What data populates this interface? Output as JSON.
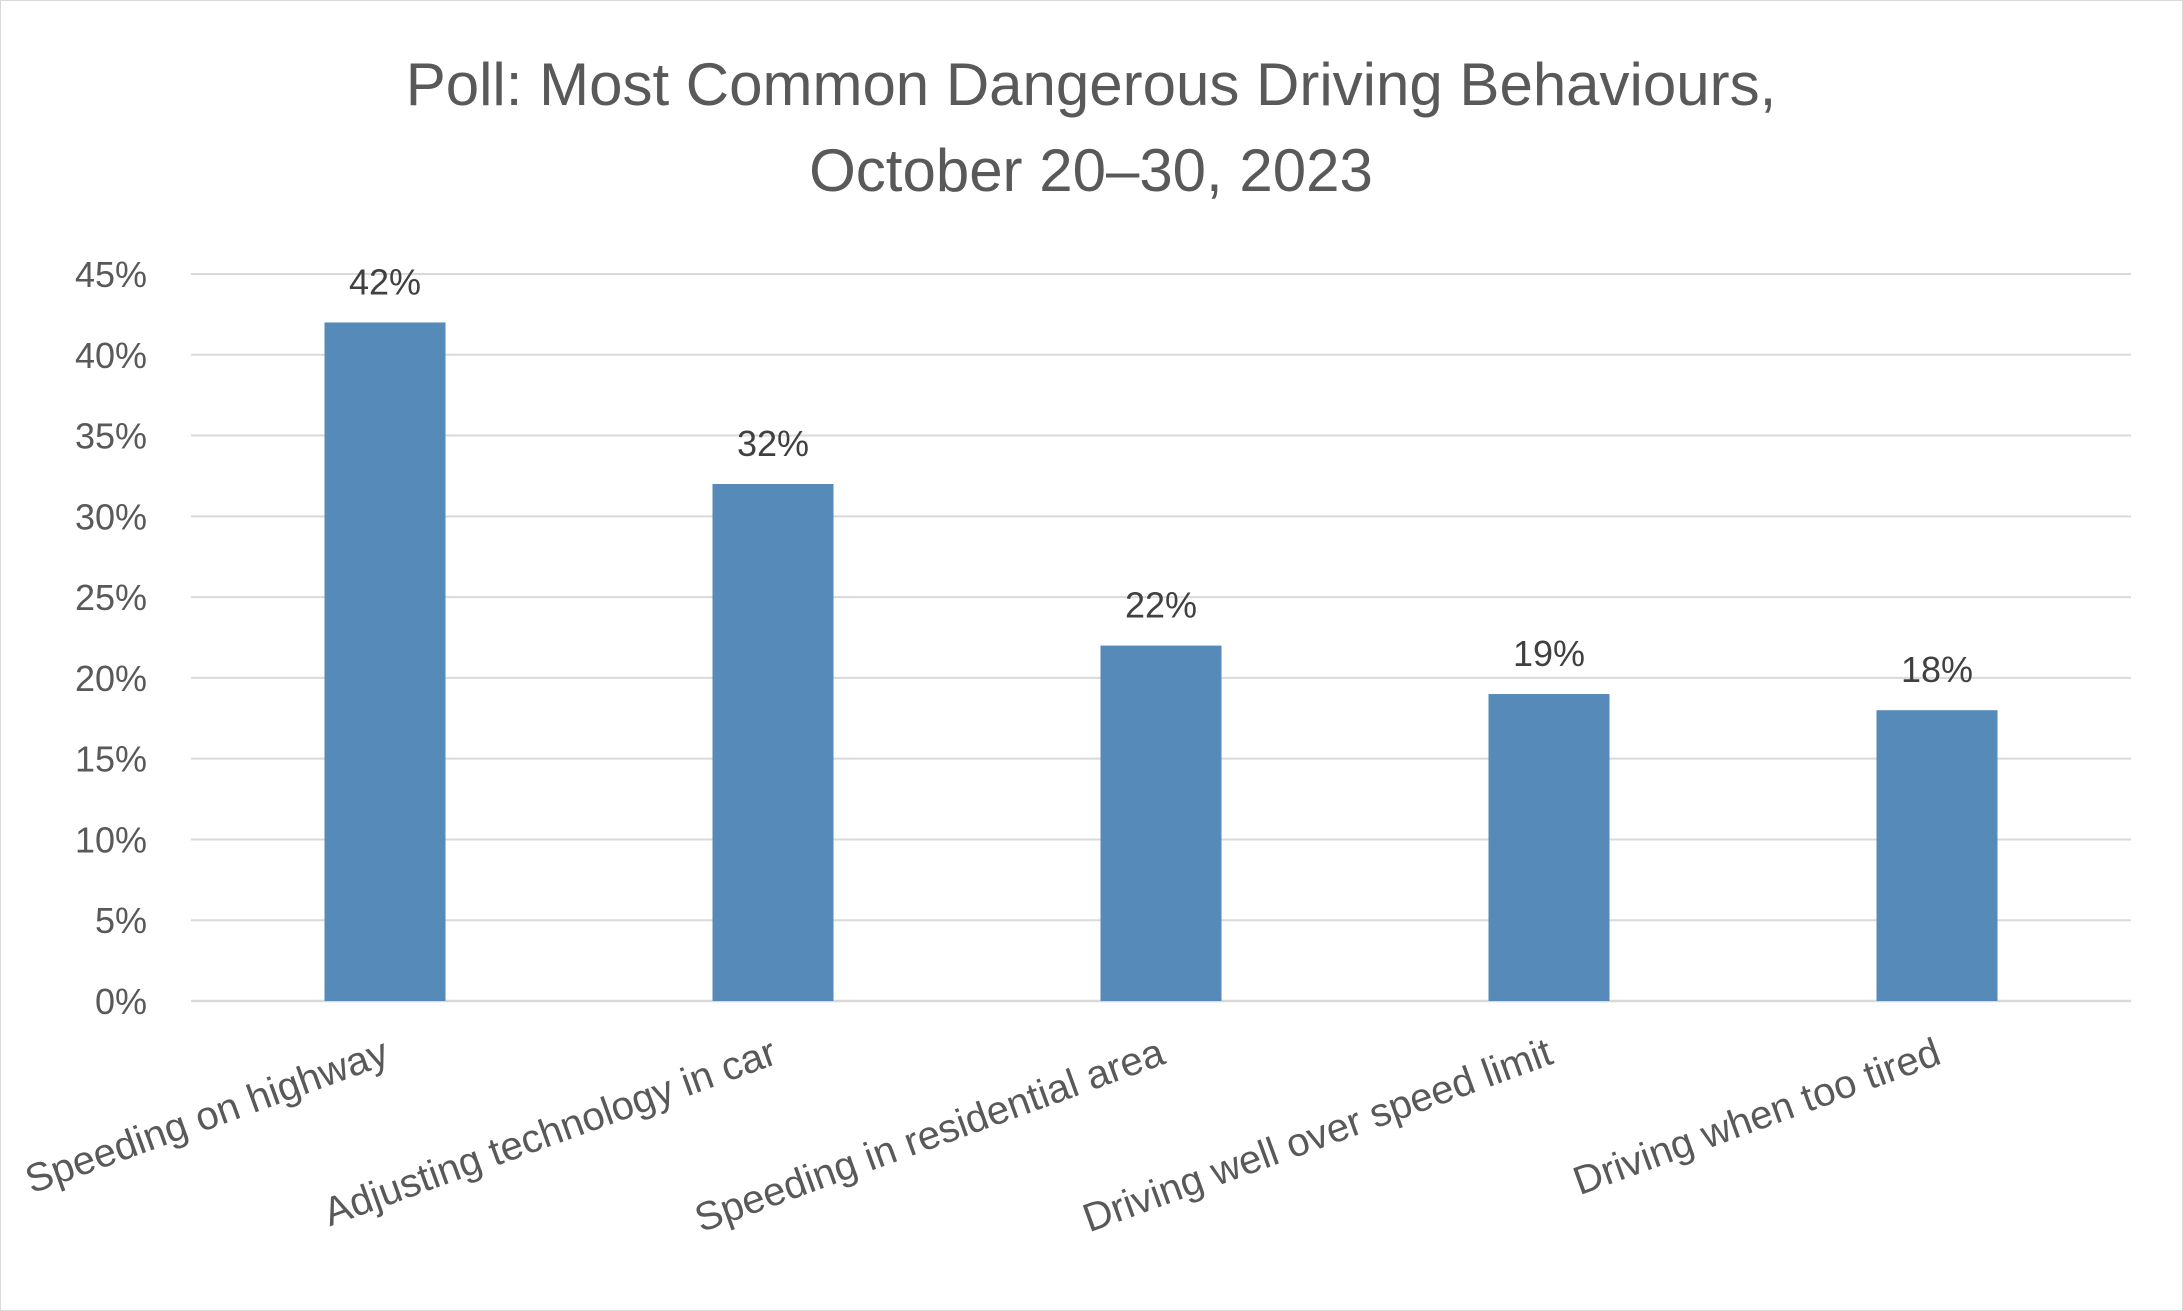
{
  "chart_data": {
    "type": "bar",
    "title_lines": [
      "Poll: Most Common Dangerous Driving Behaviours,",
      "October 20–30, 2023"
    ],
    "categories": [
      "Speeding on highway",
      "Adjusting technology in car",
      "Speeding in residential area",
      "Driving well over speed limit",
      "Driving when too tired"
    ],
    "values": [
      42,
      32,
      22,
      19,
      18
    ],
    "data_labels": [
      "42%",
      "32%",
      "22%",
      "19%",
      "18%"
    ],
    "y_ticks": [
      "0%",
      "5%",
      "10%",
      "15%",
      "20%",
      "25%",
      "30%",
      "35%",
      "40%",
      "45%"
    ],
    "ylim": [
      0,
      45
    ],
    "y_step": 5,
    "grid": true,
    "legend": "none",
    "bar_color": "#558ab9"
  }
}
